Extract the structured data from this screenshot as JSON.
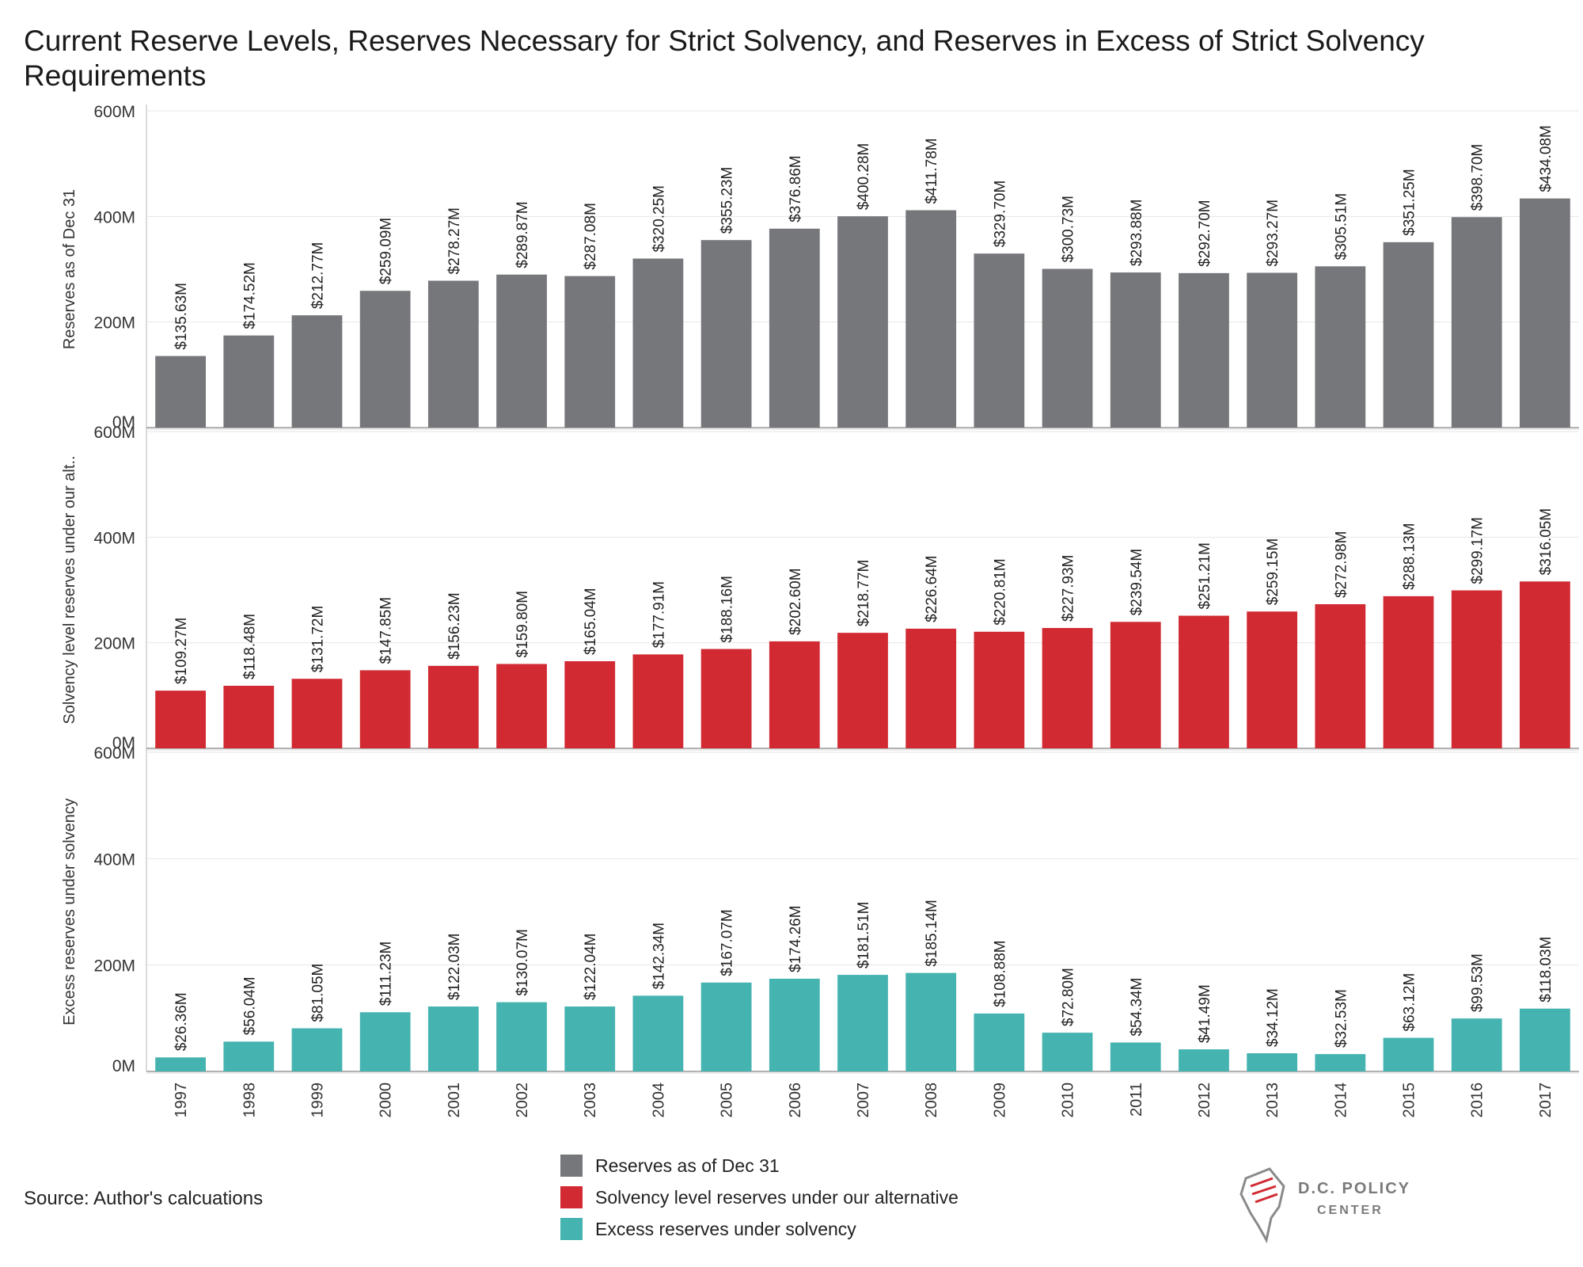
{
  "title": "Current Reserve Levels, Reserves Necessary for Strict Solvency, and Reserves in Excess of Strict Solvency Requirements",
  "source": "Source: Author's calcuations",
  "logo": {
    "line1": "D.C. POLICY",
    "line2": "CENTER"
  },
  "legend": [
    {
      "label": "Reserves as of Dec 31",
      "color": "#76777b"
    },
    {
      "label": "Solvency level reserves under our alternative",
      "color": "#d12a32"
    },
    {
      "label": "Excess reserves under solvency",
      "color": "#45b3b0"
    }
  ],
  "chart_data": {
    "type": "bar",
    "categories": [
      "1997",
      "1998",
      "1999",
      "2000",
      "2001",
      "2002",
      "2003",
      "2004",
      "2005",
      "2006",
      "2007",
      "2008",
      "2009",
      "2010",
      "2011",
      "2012",
      "2013",
      "2014",
      "2015",
      "2016",
      "2017"
    ],
    "panels": [
      {
        "ylabel": "Reserves as of Dec 31",
        "color": "#76777b",
        "ylim": [
          0,
          600
        ],
        "yticks": [
          0,
          200,
          400,
          600
        ],
        "ytick_labels": [
          "0M",
          "200M",
          "400M",
          "600M"
        ],
        "values": [
          135.63,
          174.52,
          212.77,
          259.09,
          278.27,
          289.87,
          287.08,
          320.25,
          355.23,
          376.86,
          400.28,
          411.78,
          329.7,
          300.73,
          293.88,
          292.7,
          293.27,
          305.51,
          351.25,
          398.7,
          434.08
        ],
        "labels": [
          "$135.63M",
          "$174.52M",
          "$212.77M",
          "$259.09M",
          "$278.27M",
          "$289.87M",
          "$287.08M",
          "$320.25M",
          "$355.23M",
          "$376.86M",
          "$400.28M",
          "$411.78M",
          "$329.70M",
          "$300.73M",
          "$293.88M",
          "$292.70M",
          "$293.27M",
          "$305.51M",
          "$351.25M",
          "$398.70M",
          "$434.08M"
        ]
      },
      {
        "ylabel": "Solvency level reserves under our alt..",
        "color": "#d12a32",
        "ylim": [
          0,
          600
        ],
        "yticks": [
          0,
          200,
          400,
          600
        ],
        "ytick_labels": [
          "0M",
          "200M",
          "400M",
          "600M"
        ],
        "values": [
          109.27,
          118.48,
          131.72,
          147.85,
          156.23,
          159.8,
          165.04,
          177.91,
          188.16,
          202.6,
          218.77,
          226.64,
          220.81,
          227.93,
          239.54,
          251.21,
          259.15,
          272.98,
          288.13,
          299.17,
          316.05
        ],
        "labels": [
          "$109.27M",
          "$118.48M",
          "$131.72M",
          "$147.85M",
          "$156.23M",
          "$159.80M",
          "$165.04M",
          "$177.91M",
          "$188.16M",
          "$202.60M",
          "$218.77M",
          "$226.64M",
          "$220.81M",
          "$227.93M",
          "$239.54M",
          "$251.21M",
          "$259.15M",
          "$272.98M",
          "$288.13M",
          "$299.17M",
          "$316.05M"
        ]
      },
      {
        "ylabel": "Excess reserves under solvency",
        "color": "#45b3b0",
        "ylim": [
          0,
          600
        ],
        "yticks": [
          0,
          200,
          400,
          600
        ],
        "ytick_labels": [
          "0M",
          "200M",
          "400M",
          "600M"
        ],
        "values": [
          26.36,
          56.04,
          81.05,
          111.23,
          122.03,
          130.07,
          122.04,
          142.34,
          167.07,
          174.26,
          181.51,
          185.14,
          108.88,
          72.8,
          54.34,
          41.49,
          34.12,
          32.53,
          63.12,
          99.53,
          118.03
        ],
        "labels": [
          "$26.36M",
          "$56.04M",
          "$81.05M",
          "$111.23M",
          "$122.03M",
          "$130.07M",
          "$122.04M",
          "$142.34M",
          "$167.07M",
          "$174.26M",
          "$181.51M",
          "$185.14M",
          "$108.88M",
          "$72.80M",
          "$54.34M",
          "$41.49M",
          "$34.12M",
          "$32.53M",
          "$63.12M",
          "$99.53M",
          "$118.03M"
        ]
      }
    ],
    "grid": true,
    "legend_position": "bottom-center"
  }
}
